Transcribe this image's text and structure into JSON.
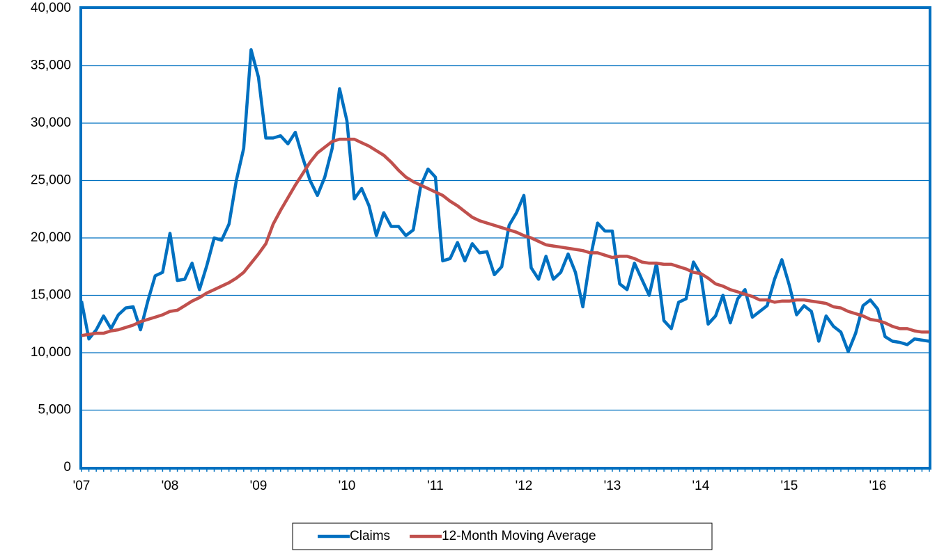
{
  "chart_data": {
    "type": "line",
    "categories": [
      "'07",
      null,
      null,
      null,
      null,
      null,
      null,
      null,
      null,
      null,
      null,
      null,
      "'08",
      null,
      null,
      null,
      null,
      null,
      null,
      null,
      null,
      null,
      null,
      null,
      "'09",
      null,
      null,
      null,
      null,
      null,
      null,
      null,
      null,
      null,
      null,
      null,
      "'10",
      null,
      null,
      null,
      null,
      null,
      null,
      null,
      null,
      null,
      null,
      null,
      "'11",
      null,
      null,
      null,
      null,
      null,
      null,
      null,
      null,
      null,
      null,
      null,
      "'12",
      null,
      null,
      null,
      null,
      null,
      null,
      null,
      null,
      null,
      null,
      null,
      "'13",
      null,
      null,
      null,
      null,
      null,
      null,
      null,
      null,
      null,
      null,
      null,
      "'14",
      null,
      null,
      null,
      null,
      null,
      null,
      null,
      null,
      null,
      null,
      null,
      "'15",
      null,
      null,
      null,
      null,
      null,
      null,
      null,
      null,
      null,
      null,
      null,
      "'16",
      null,
      null,
      null,
      null,
      null,
      null,
      null
    ],
    "series": [
      {
        "name": "Claims",
        "color": "#0070c0",
        "values": [
          14500,
          11200,
          12000,
          13200,
          12100,
          13300,
          13900,
          14000,
          12000,
          14500,
          16700,
          17000,
          20400,
          16300,
          16400,
          17800,
          15500,
          17600,
          20000,
          19800,
          21200,
          25000,
          27800,
          36400,
          34000,
          28700,
          28700,
          28900,
          28200,
          29200,
          27000,
          25000,
          23700,
          25300,
          27800,
          33000,
          30200,
          23400,
          24300,
          22800,
          20200,
          22200,
          21000,
          21000,
          20200,
          20700,
          24500,
          26000,
          25300,
          18000,
          18200,
          19600,
          18000,
          19500,
          18700,
          18800,
          16800,
          17500,
          21100,
          22200,
          23700,
          17400,
          16400,
          18400,
          16400,
          17000,
          18600,
          17000,
          14000,
          18200,
          21300,
          20600,
          20600,
          16000,
          15500,
          17800,
          16400,
          15000,
          17800,
          12800,
          12100,
          14400,
          14700,
          17900,
          16800,
          12500,
          13200,
          15000,
          12600,
          14700,
          15500,
          13100,
          13600,
          14100,
          16400,
          18100,
          15900,
          13300,
          14100,
          13600,
          11000,
          13200,
          12300,
          11800,
          10100,
          11700,
          14100,
          14600,
          13800,
          11400,
          11000,
          10900,
          10700,
          11200,
          11100,
          11000
        ]
      },
      {
        "name": "12-Month Moving Average",
        "color": "#c0504d",
        "values": [
          11500,
          11600,
          11700,
          11700,
          11900,
          12000,
          12200,
          12400,
          12700,
          12900,
          13100,
          13300,
          13600,
          13700,
          14100,
          14500,
          14800,
          15200,
          15500,
          15800,
          16100,
          16500,
          17000,
          17800,
          18600,
          19500,
          21200,
          22400,
          23500,
          24600,
          25600,
          26600,
          27400,
          27900,
          28400,
          28600,
          28600,
          28600,
          28300,
          28000,
          27600,
          27200,
          26600,
          25900,
          25300,
          24900,
          24600,
          24300,
          24000,
          23700,
          23200,
          22800,
          22300,
          21800,
          21500,
          21300,
          21100,
          20900,
          20700,
          20500,
          20200,
          20000,
          19700,
          19400,
          19300,
          19200,
          19100,
          19000,
          18900,
          18700,
          18700,
          18500,
          18300,
          18400,
          18400,
          18200,
          17900,
          17800,
          17800,
          17700,
          17700,
          17500,
          17300,
          17000,
          16900,
          16500,
          16000,
          15800,
          15500,
          15300,
          15100,
          14900,
          14600,
          14600,
          14400,
          14500,
          14500,
          14600,
          14600,
          14500,
          14400,
          14300,
          14000,
          13900,
          13600,
          13400,
          13200,
          12900,
          12800,
          12600,
          12300,
          12100,
          12100,
          11900,
          11800,
          11800
        ]
      }
    ],
    "ylim": [
      0,
      40000
    ],
    "yticks": [
      0,
      {
        "value": 5000,
        "label": "5,000"
      },
      {
        "value": 10000,
        "label": "10,000"
      },
      {
        "value": 15000,
        "label": "15,000"
      },
      {
        "value": 20000,
        "label": "20,000"
      },
      {
        "value": 25000,
        "label": "25,000"
      },
      {
        "value": 30000,
        "label": "30,000"
      },
      {
        "value": 35000,
        "label": "35,000"
      },
      {
        "value": 40000,
        "label": "40,000"
      }
    ],
    "grid": true,
    "legend": "bottom"
  }
}
